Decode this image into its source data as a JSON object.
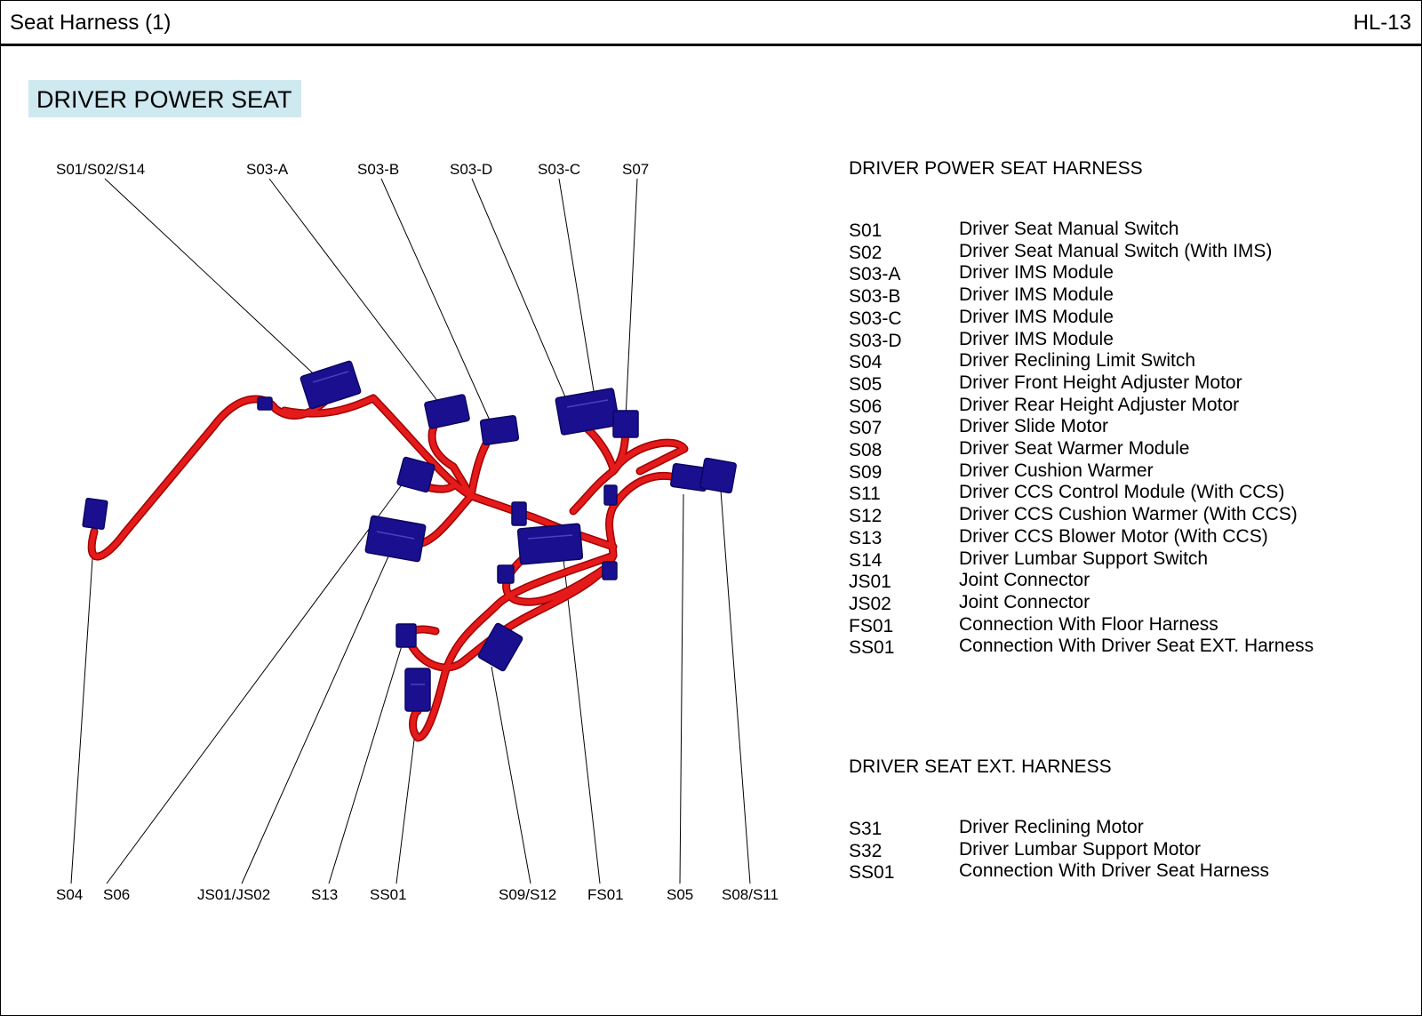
{
  "header": {
    "title": "Seat Harness (1)",
    "page_code": "HL-13"
  },
  "section_title": "DRIVER POWER SEAT",
  "colors": {
    "wire": "#e51a1a",
    "wire_dark": "#a00000",
    "connector": "#1a0f8f",
    "connector_dark": "#0b0660",
    "badge": "#cfe9f1"
  },
  "callouts_top": [
    "S01/S02/S14",
    "S03-A",
    "S03-B",
    "S03-D",
    "S03-C",
    "S07"
  ],
  "callouts_bottom": [
    "S04",
    "S06",
    "JS01/JS02",
    "S13",
    "SS01",
    "S09/S12",
    "FS01",
    "S05",
    "S08/S11"
  ],
  "harness": {
    "title": "DRIVER POWER SEAT HARNESS",
    "items": [
      {
        "code": "S01",
        "desc": "Driver Seat Manual Switch"
      },
      {
        "code": "S02",
        "desc": "Driver Seat Manual Switch (With IMS)"
      },
      {
        "code": "S03-A",
        "desc": "Driver IMS Module"
      },
      {
        "code": "S03-B",
        "desc": "Driver IMS Module"
      },
      {
        "code": "S03-C",
        "desc": "Driver IMS Module"
      },
      {
        "code": "S03-D",
        "desc": "Driver IMS Module"
      },
      {
        "code": "S04",
        "desc": "Driver Reclining Limit Switch"
      },
      {
        "code": "S05",
        "desc": "Driver Front Height Adjuster Motor"
      },
      {
        "code": "S06",
        "desc": "Driver Rear Height Adjuster Motor"
      },
      {
        "code": "S07",
        "desc": "Driver Slide Motor"
      },
      {
        "code": "S08",
        "desc": "Driver Seat Warmer Module"
      },
      {
        "code": "S09",
        "desc": "Driver Cushion Warmer"
      },
      {
        "code": "S11",
        "desc": "Driver CCS Control Module (With CCS)"
      },
      {
        "code": "S12",
        "desc": "Driver CCS Cushion Warmer (With CCS)"
      },
      {
        "code": "S13",
        "desc": "Driver CCS Blower Motor (With CCS)"
      },
      {
        "code": "S14",
        "desc": "Driver Lumbar Support Switch"
      },
      {
        "code": "JS01",
        "desc": "Joint Connector"
      },
      {
        "code": "JS02",
        "desc": "Joint Connector"
      },
      {
        "code": "FS01",
        "desc": "Connection With Floor Harness"
      },
      {
        "code": "SS01",
        "desc": "Connection With Driver Seat EXT. Harness"
      }
    ]
  },
  "ext_harness": {
    "title": "DRIVER SEAT EXT. HARNESS",
    "items": [
      {
        "code": "S31",
        "desc": "Driver Reclining Motor"
      },
      {
        "code": "S32",
        "desc": "Driver Lumbar Support Motor"
      },
      {
        "code": "SS01",
        "desc": "Connection With Driver Seat Harness"
      }
    ]
  }
}
